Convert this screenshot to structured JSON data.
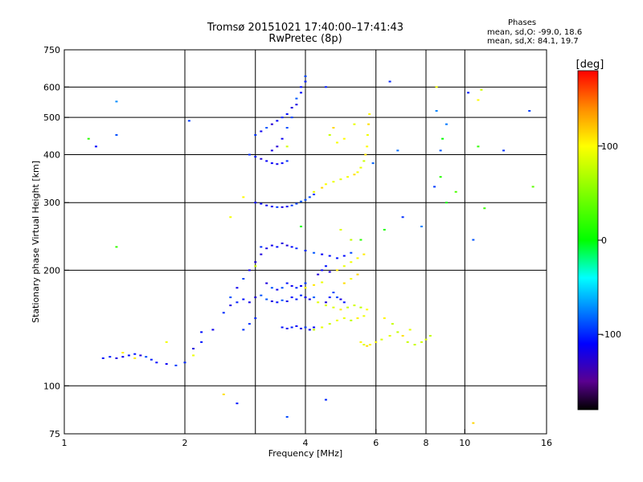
{
  "title_line1": "Tromsø 20151021 17:40:00–17:41:43",
  "title_line2": "RwPretec (8p)",
  "phases_title": "Phases",
  "phases_line1": "mean, sd,O: -99.0, 18.6",
  "phases_line2": "mean, sd,X: 84.1, 19.7",
  "colorbar": {
    "unit": "[deg]",
    "range": [
      -180,
      180
    ],
    "ticks": [
      {
        "value": 100,
        "label": "100"
      },
      {
        "value": 0,
        "label": "0"
      },
      {
        "value": -100,
        "label": "-100"
      }
    ],
    "colors": [
      {
        "value": -180,
        "color": "#000000"
      },
      {
        "value": -150,
        "color": "#5a0090"
      },
      {
        "value": -110,
        "color": "#0000ff"
      },
      {
        "value": -40,
        "color": "#00ffff"
      },
      {
        "value": 0,
        "color": "#00ff00"
      },
      {
        "value": 100,
        "color": "#ffff00"
      },
      {
        "value": 140,
        "color": "#ff8c00"
      },
      {
        "value": 180,
        "color": "#ff0000"
      }
    ]
  },
  "chart_data": {
    "type": "scatter",
    "xlabel": "Frequency [MHz]",
    "ylabel": "Stationary phase Virtual Height [km]",
    "x_scale": "log",
    "y_scale": "log",
    "xlim": [
      1,
      16
    ],
    "ylim": [
      75,
      750
    ],
    "x_ticks": [
      {
        "value": 1,
        "label": "1"
      },
      {
        "value": 2,
        "label": "2"
      },
      {
        "value": 4,
        "label": "4"
      },
      {
        "value": 6,
        "label": "6"
      },
      {
        "value": 8,
        "label": "8"
      },
      {
        "value": 10,
        "label": "10"
      },
      {
        "value": 16,
        "label": "16"
      }
    ],
    "x_grid": [
      2,
      3,
      4,
      6,
      8,
      10
    ],
    "y_ticks": [
      {
        "value": 75,
        "label": "75"
      },
      {
        "value": 100,
        "label": "100"
      },
      {
        "value": 200,
        "label": "200"
      },
      {
        "value": 300,
        "label": "300"
      },
      {
        "value": 400,
        "label": "400"
      },
      {
        "value": 500,
        "label": "500"
      },
      {
        "value": 600,
        "label": "600"
      },
      {
        "value": 750,
        "label": "750"
      }
    ],
    "y_grid": [
      100,
      200,
      300,
      400,
      500,
      600
    ],
    "grid": true,
    "series": [
      {
        "mode": "O",
        "phase": -105,
        "points": [
          [
            1.25,
            118
          ],
          [
            1.3,
            119
          ],
          [
            1.35,
            118
          ],
          [
            1.4,
            119
          ],
          [
            1.45,
            120
          ],
          [
            1.5,
            121
          ],
          [
            1.55,
            120
          ],
          [
            1.6,
            119
          ],
          [
            1.65,
            117
          ],
          [
            1.7,
            115
          ],
          [
            1.8,
            114
          ],
          [
            1.9,
            113
          ],
          [
            2.0,
            115
          ],
          [
            2.1,
            125
          ],
          [
            2.2,
            130
          ],
          [
            2.35,
            140
          ],
          [
            2.5,
            155
          ],
          [
            2.6,
            162
          ],
          [
            2.7,
            165
          ],
          [
            2.8,
            168
          ],
          [
            2.9,
            165
          ],
          [
            3.0,
            170
          ],
          [
            3.1,
            172
          ],
          [
            3.2,
            168
          ],
          [
            3.3,
            166
          ],
          [
            3.4,
            165
          ],
          [
            3.5,
            167
          ],
          [
            3.6,
            166
          ],
          [
            3.7,
            170
          ],
          [
            3.8,
            168
          ],
          [
            3.9,
            172
          ],
          [
            4.0,
            170
          ],
          [
            4.1,
            168
          ],
          [
            4.2,
            170
          ],
          [
            3.5,
            142
          ],
          [
            3.6,
            141
          ],
          [
            3.7,
            142
          ],
          [
            3.8,
            143
          ],
          [
            3.9,
            141
          ],
          [
            4.0,
            142
          ],
          [
            4.1,
            140
          ],
          [
            4.2,
            142
          ],
          [
            3.2,
            185
          ],
          [
            3.3,
            180
          ],
          [
            3.4,
            178
          ],
          [
            3.5,
            180
          ],
          [
            3.6,
            185
          ],
          [
            3.7,
            182
          ],
          [
            3.8,
            180
          ],
          [
            3.9,
            182
          ],
          [
            4.0,
            185
          ],
          [
            3.1,
            230
          ],
          [
            3.2,
            228
          ],
          [
            3.3,
            232
          ],
          [
            3.4,
            230
          ],
          [
            3.5,
            235
          ],
          [
            3.6,
            232
          ],
          [
            3.7,
            230
          ],
          [
            3.8,
            228
          ],
          [
            4.0,
            225
          ],
          [
            4.2,
            222
          ],
          [
            4.4,
            220
          ],
          [
            4.6,
            218
          ],
          [
            4.8,
            215
          ],
          [
            5.0,
            218
          ],
          [
            5.2,
            222
          ],
          [
            3.0,
            300
          ],
          [
            3.1,
            298
          ],
          [
            3.2,
            295
          ],
          [
            3.3,
            293
          ],
          [
            3.4,
            292
          ],
          [
            3.5,
            292
          ],
          [
            3.6,
            293
          ],
          [
            3.7,
            295
          ],
          [
            3.8,
            298
          ],
          [
            3.9,
            302
          ],
          [
            4.0,
            305
          ],
          [
            4.1,
            310
          ],
          [
            4.2,
            315
          ],
          [
            2.9,
            400
          ],
          [
            3.0,
            395
          ],
          [
            3.1,
            390
          ],
          [
            3.2,
            385
          ],
          [
            3.3,
            380
          ],
          [
            3.4,
            378
          ],
          [
            3.5,
            380
          ],
          [
            3.6,
            385
          ],
          [
            3.0,
            450
          ],
          [
            3.1,
            460
          ],
          [
            3.2,
            470
          ],
          [
            3.3,
            480
          ],
          [
            3.4,
            490
          ],
          [
            3.5,
            500
          ],
          [
            3.6,
            510
          ],
          [
            3.7,
            530
          ],
          [
            3.8,
            560
          ],
          [
            3.9,
            600
          ],
          [
            4.0,
            640
          ],
          [
            4.0,
            620
          ],
          [
            3.9,
            580
          ],
          [
            3.8,
            540
          ],
          [
            3.7,
            500
          ],
          [
            3.6,
            470
          ],
          [
            3.5,
            440
          ],
          [
            3.4,
            420
          ],
          [
            3.3,
            410
          ],
          [
            2.8,
            140
          ],
          [
            2.9,
            145
          ],
          [
            3.0,
            150
          ],
          [
            2.6,
            170
          ],
          [
            2.7,
            180
          ],
          [
            2.8,
            190
          ],
          [
            2.9,
            200
          ],
          [
            3.0,
            210
          ],
          [
            3.1,
            220
          ],
          [
            4.5,
            165
          ],
          [
            4.6,
            170
          ],
          [
            4.7,
            175
          ],
          [
            4.8,
            170
          ],
          [
            4.9,
            168
          ],
          [
            5.0,
            165
          ],
          [
            4.3,
            195
          ],
          [
            4.4,
            200
          ],
          [
            4.5,
            205
          ],
          [
            4.6,
            198
          ]
        ]
      },
      {
        "mode": "X",
        "phase": 95,
        "points": [
          [
            4.3,
            165
          ],
          [
            4.5,
            162
          ],
          [
            4.7,
            160
          ],
          [
            4.9,
            158
          ],
          [
            5.1,
            160
          ],
          [
            5.3,
            162
          ],
          [
            5.5,
            160
          ],
          [
            5.7,
            158
          ],
          [
            4.2,
            140
          ],
          [
            4.4,
            142
          ],
          [
            4.6,
            145
          ],
          [
            4.8,
            148
          ],
          [
            5.0,
            150
          ],
          [
            5.2,
            148
          ],
          [
            5.4,
            150
          ],
          [
            5.6,
            152
          ],
          [
            5.5,
            130
          ],
          [
            5.6,
            128
          ],
          [
            5.7,
            127
          ],
          [
            5.8,
            128
          ],
          [
            6.0,
            130
          ],
          [
            6.2,
            132
          ],
          [
            6.5,
            135
          ],
          [
            6.8,
            138
          ],
          [
            7.0,
            135
          ],
          [
            7.2,
            130
          ],
          [
            7.5,
            128
          ],
          [
            7.8,
            130
          ],
          [
            8.0,
            132
          ],
          [
            8.2,
            135
          ],
          [
            4.5,
            335
          ],
          [
            4.7,
            340
          ],
          [
            4.9,
            345
          ],
          [
            5.1,
            350
          ],
          [
            5.3,
            355
          ],
          [
            5.4,
            360
          ],
          [
            5.5,
            370
          ],
          [
            5.6,
            385
          ],
          [
            5.65,
            400
          ],
          [
            5.7,
            420
          ],
          [
            5.72,
            450
          ],
          [
            5.75,
            480
          ],
          [
            5.78,
            510
          ],
          [
            4.2,
            320
          ],
          [
            4.4,
            328
          ],
          [
            4.8,
            200
          ],
          [
            5.0,
            205
          ],
          [
            5.2,
            210
          ],
          [
            5.4,
            215
          ],
          [
            5.6,
            220
          ],
          [
            5.0,
            185
          ],
          [
            5.2,
            190
          ],
          [
            5.4,
            195
          ],
          [
            4.0,
            180
          ],
          [
            4.2,
            183
          ],
          [
            4.4,
            186
          ],
          [
            4.6,
            450
          ],
          [
            4.7,
            470
          ],
          [
            4.8,
            430
          ],
          [
            5.0,
            440
          ],
          [
            5.3,
            480
          ],
          [
            1.4,
            122
          ],
          [
            1.5,
            118
          ],
          [
            1.8,
            130
          ],
          [
            2.1,
            120
          ],
          [
            2.5,
            95
          ],
          [
            6.3,
            150
          ],
          [
            6.6,
            145
          ],
          [
            7.3,
            140
          ],
          [
            8.5,
            600
          ],
          [
            10.5,
            80
          ],
          [
            10.8,
            555
          ],
          [
            11.0,
            590
          ],
          [
            2.8,
            310
          ],
          [
            3.0,
            205
          ],
          [
            3.6,
            420
          ],
          [
            2.6,
            275
          ],
          [
            4.9,
            255
          ],
          [
            5.2,
            240
          ]
        ]
      },
      {
        "mode": "scattered",
        "phase": -90,
        "points": [
          [
            1.35,
            550
          ],
          [
            1.35,
            450
          ],
          [
            1.2,
            420
          ],
          [
            2.05,
            490
          ],
          [
            4.5,
            600
          ],
          [
            5.9,
            380
          ],
          [
            6.5,
            620
          ],
          [
            6.8,
            410
          ],
          [
            7.0,
            275
          ],
          [
            8.5,
            520
          ],
          [
            8.7,
            410
          ],
          [
            8.4,
            330
          ],
          [
            9.0,
            480
          ],
          [
            10.2,
            580
          ],
          [
            12.5,
            410
          ],
          [
            14.5,
            520
          ],
          [
            7.8,
            260
          ],
          [
            10.5,
            240
          ],
          [
            2.2,
            138
          ],
          [
            2.7,
            90
          ],
          [
            3.6,
            83
          ],
          [
            4.5,
            92
          ]
        ]
      },
      {
        "mode": "scattered",
        "phase": 20,
        "points": [
          [
            1.15,
            440
          ],
          [
            1.35,
            230
          ],
          [
            8.7,
            350
          ],
          [
            8.8,
            440
          ],
          [
            9.0,
            300
          ],
          [
            9.5,
            320
          ],
          [
            10.8,
            420
          ],
          [
            11.2,
            290
          ],
          [
            14.8,
            330
          ],
          [
            3.9,
            260
          ],
          [
            5.5,
            240
          ],
          [
            6.3,
            255
          ]
        ]
      }
    ]
  }
}
